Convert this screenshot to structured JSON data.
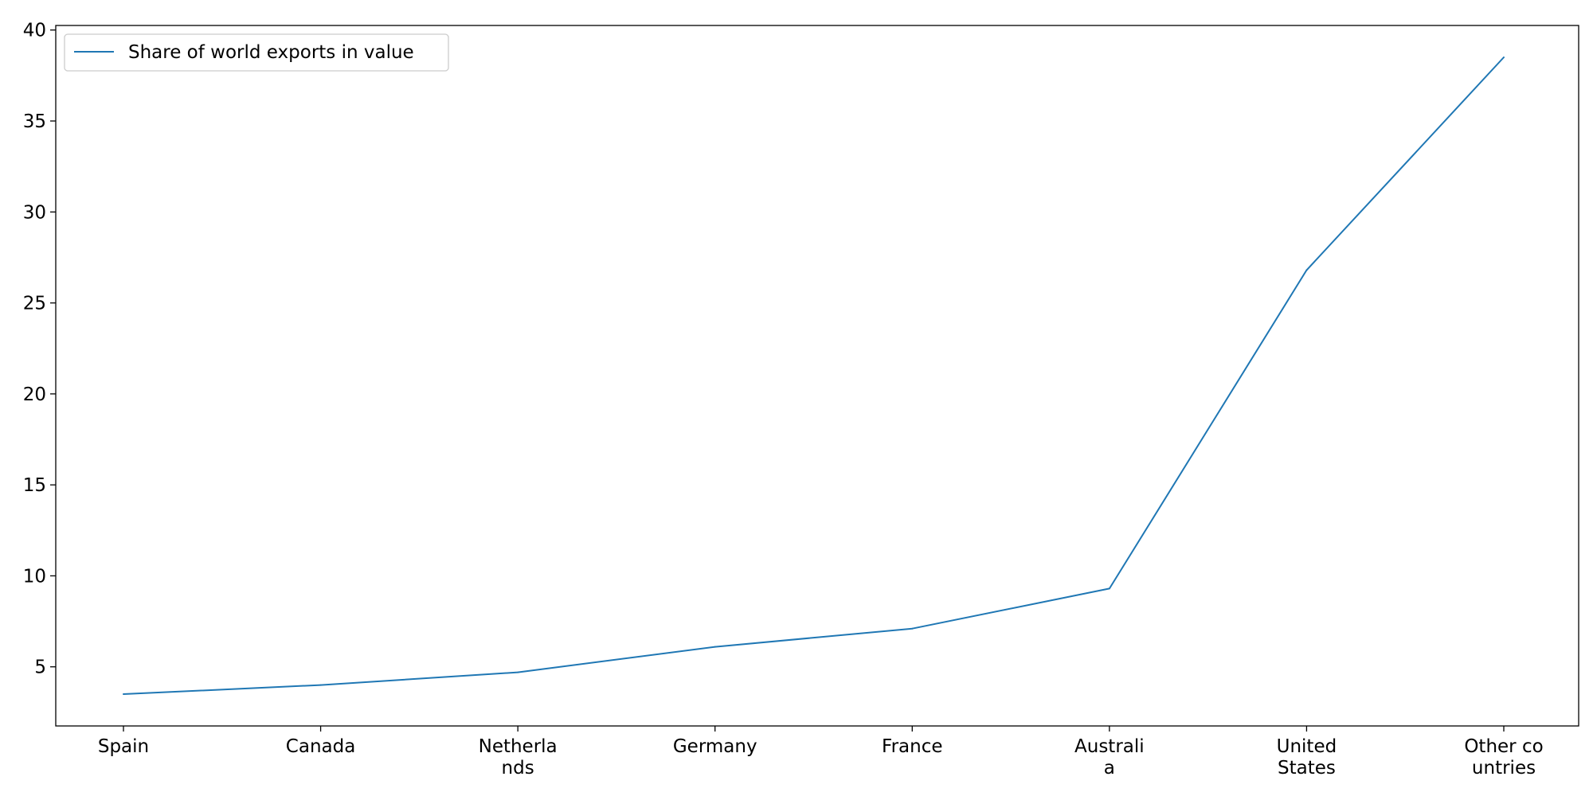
{
  "chart_data": {
    "type": "line",
    "title": "",
    "xlabel": "",
    "ylabel": "",
    "categories": [
      "Spain",
      "Canada",
      "Netherlands",
      "Germany",
      "France",
      "Australia",
      "United States",
      "Other countries"
    ],
    "category_labels": [
      [
        "Spain"
      ],
      [
        "Canada"
      ],
      [
        "Netherla",
        "nds"
      ],
      [
        "Germany"
      ],
      [
        "France"
      ],
      [
        "Australi",
        "a"
      ],
      [
        "United",
        "States"
      ],
      [
        "Other co",
        "untries"
      ]
    ],
    "series": [
      {
        "name": "Share of world exports in value",
        "color": "#1f77b4",
        "values": [
          3.5,
          4.0,
          4.7,
          6.1,
          7.1,
          9.3,
          26.8,
          38.5
        ]
      }
    ],
    "ylim": [
      1.75,
      40.25
    ],
    "yticks": [
      5,
      10,
      15,
      20,
      25,
      30,
      35,
      40
    ],
    "grid": false,
    "legend": {
      "position": "top-left",
      "label": "Share of world exports in value"
    }
  }
}
